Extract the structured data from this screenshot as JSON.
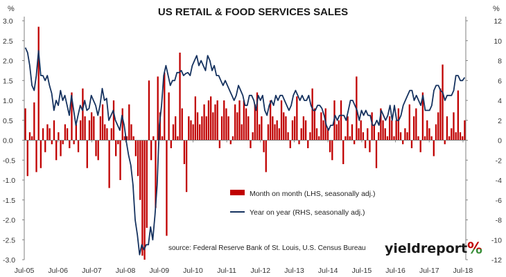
{
  "colors": {
    "bar": "#c00000",
    "line": "#15325f",
    "axis": "#7f7f7f",
    "brand_pct_top": "#c00000",
    "brand_pct_bottom": "#3a8f3a"
  },
  "brand": {
    "name": "yieldreport",
    "pct": "%"
  },
  "chart_data": {
    "type": "bar",
    "title": "US RETAIL & FOOD SERVICES SALES",
    "left_unit": "%",
    "right_unit": "%",
    "left_ylim": [
      -3.0,
      3.0
    ],
    "right_ylim": [
      -12,
      12
    ],
    "left_ticks": [
      "3.0",
      "2.5",
      "2.0",
      "1.5",
      "1.0",
      "0.5",
      "0.0",
      "-0.5",
      "-1.0",
      "-1.5",
      "-2.0",
      "-2.5",
      "-3.0"
    ],
    "right_ticks": [
      "12",
      "10",
      "8",
      "6",
      "4",
      "2",
      "0",
      "-2",
      "-4",
      "-6",
      "-8",
      "-10",
      "-12"
    ],
    "x_ticks": [
      "Jul-05",
      "Jul-06",
      "Jul-07",
      "Jul-08",
      "Jul-09",
      "Jul-10",
      "Jul-11",
      "Jul-12",
      "Jul-13",
      "Jul-14",
      "Jul-15",
      "Jul-16",
      "Jul-17",
      "Jul-18"
    ],
    "start_month": "Jul-05",
    "legend": [
      "Month on month (LHS, seasonally adj.)",
      "Year on year (RHS, seasonally adj.)"
    ],
    "source": "source: Federal Reserve Bank of St. Louis, U.S. Census Bureau",
    "series": [
      {
        "name": "Month on month (LHS, seasonally adj.)",
        "axis": "left",
        "kind": "bar",
        "values": [
          0.8,
          -0.9,
          0.2,
          0.1,
          0.95,
          -0.8,
          2.85,
          -0.7,
          0.3,
          -0.3,
          0.4,
          0.3,
          -0.1,
          0.5,
          -0.5,
          0.2,
          -0.4,
          -0.1,
          0.4,
          0.3,
          -0.2,
          1.2,
          -0.1,
          0.4,
          -0.3,
          0.5,
          1.3,
          0.6,
          -0.7,
          0.5,
          0.7,
          0.6,
          -0.4,
          -0.5,
          0.6,
          0.9,
          0.4,
          0.3,
          -1.2,
          0.3,
          1.0,
          -0.4,
          -0.1,
          -1.0,
          0.8,
          0.1,
          0.1,
          0.9,
          0.4,
          0.1,
          -0.4,
          -0.9,
          -1.5,
          -2.9,
          -3.0,
          -2.2,
          1.5,
          -0.5,
          0.1,
          -1.7,
          1.6,
          0.7,
          0.1,
          1.7,
          -2.4,
          1.2,
          -0.2,
          0.4,
          0.6,
          0.1,
          2.2,
          0.8,
          -0.6,
          -1.3,
          0.6,
          0.5,
          0.4,
          1.1,
          0.7,
          0.4,
          0.6,
          0.9,
          0.6,
          1.0,
          1.1,
          0.7,
          0.9,
          1.0,
          -0.2,
          0.6,
          1.0,
          0.8,
          0.6,
          -0.1,
          0.1,
          0.9,
          0.7,
          1.0,
          0.4,
          1.0,
          0.8,
          0.6,
          -0.2,
          0.2,
          0.9,
          1.2,
          0.4,
          0.6,
          -0.3,
          -0.8,
          0.4,
          1.0,
          0.6,
          0.4,
          0.5,
          0.3,
          1.0,
          0.7,
          0.6,
          0.2,
          -0.2,
          0.5,
          0.6,
          1.1,
          -0.1,
          0.3,
          0.6,
          0.5,
          -0.2,
          0.2,
          1.3,
          0.8,
          0.3,
          0.1,
          0.7,
          0.5,
          0.8,
          0.3,
          -0.3,
          -0.5,
          1.0,
          0.4,
          0.5,
          1.0,
          -0.6,
          0.1,
          0.6,
          0.1,
          0.4,
          -0.1,
          1.6,
          0.3,
          0.5,
          0.2,
          -0.2,
          0.3,
          -0.3,
          0.7,
          0.4,
          -0.7,
          0.2,
          0.8,
          0.5,
          0.3,
          0.1,
          0.6,
          0.5,
          0.1,
          0.5,
          0.8,
          0.2,
          -0.1,
          0.3,
          0.2,
          0.9,
          -0.2,
          0.6,
          0.8,
          0.1,
          -0.3,
          1.2,
          0.1,
          0.5,
          0.3,
          0.1,
          -0.4,
          0.4,
          0.7,
          1.3,
          1.9,
          -0.1,
          0.6,
          0.1,
          0.3,
          0.7,
          0.2,
          1.25,
          0.2,
          0.1,
          0.5
        ],
        "_note": ""
      },
      {
        "name": "Year on year (RHS, seasonally adj.)",
        "axis": "right",
        "kind": "line",
        "values": [
          9.3,
          8.8,
          7.5,
          5.5,
          5.0,
          6.5,
          9.0,
          6.5,
          6.5,
          6.0,
          6.5,
          5.5,
          4.7,
          3.0,
          4.0,
          3.5,
          5.0,
          4.0,
          4.5,
          3.5,
          2.5,
          4.5,
          3.0,
          1.5,
          2.5,
          3.5,
          3.0,
          4.0,
          3.0,
          3.2,
          4.5,
          4.0,
          3.5,
          2.5,
          3.5,
          5.2,
          4.0,
          4.2,
          2.0,
          2.5,
          3.0,
          2.0,
          1.5,
          1.0,
          2.5,
          1.5,
          -0.2,
          -1.5,
          -2.5,
          -4.5,
          -8.0,
          -9.5,
          -11.5,
          -10.5,
          -11.0,
          -10.5,
          -10.5,
          -8.7,
          -10.0,
          -7.5,
          -4.5,
          1.5,
          3.5,
          6.5,
          7.5,
          6.5,
          5.5,
          6.0,
          6.0,
          6.8,
          6.8,
          7.0,
          6.5,
          6.7,
          6.8,
          6.5,
          7.5,
          8.0,
          8.5,
          7.5,
          8.0,
          7.5,
          7.0,
          8.5,
          8.0,
          7.0,
          7.5,
          6.5,
          6.5,
          6.0,
          5.5,
          6.0,
          5.5,
          5.0,
          4.5,
          4.0,
          4.5,
          5.5,
          5.0,
          4.5,
          3.5,
          3.5,
          4.5,
          4.5,
          4.0,
          3.0,
          4.5,
          4.0,
          4.5,
          3.0,
          2.5,
          3.5,
          4.0,
          3.5,
          4.5,
          4.0,
          4.5,
          4.5,
          4.0,
          3.5,
          3.0,
          3.5,
          4.5,
          5.0,
          4.5,
          4.0,
          4.5,
          4.0,
          4.0,
          4.5,
          3.5,
          3.0,
          3.0,
          3.5,
          3.5,
          3.2,
          2.5,
          1.5,
          1.0,
          1.5,
          1.5,
          2.5,
          2.0,
          2.5,
          2.5,
          2.5,
          2.0,
          3.0,
          4.0,
          4.0,
          3.5,
          3.0,
          2.0,
          3.0,
          2.5,
          3.0,
          2.5,
          2.5,
          1.5,
          1.5,
          2.0,
          1.5,
          3.0,
          2.5,
          2.0,
          2.5,
          3.5,
          2.0,
          3.5,
          2.0,
          2.0,
          2.5,
          3.5,
          4.0,
          4.5,
          5.0,
          5.0,
          4.0,
          4.5,
          4.0,
          3.5,
          4.5,
          3.0,
          3.0,
          3.0,
          3.5,
          5.0,
          5.5,
          5.5,
          5.0,
          4.8,
          4.0,
          4.5,
          4.5,
          4.5,
          5.0,
          6.5,
          6.5,
          6.0,
          6.0,
          6.3
        ],
        "_note": ""
      }
    ]
  }
}
